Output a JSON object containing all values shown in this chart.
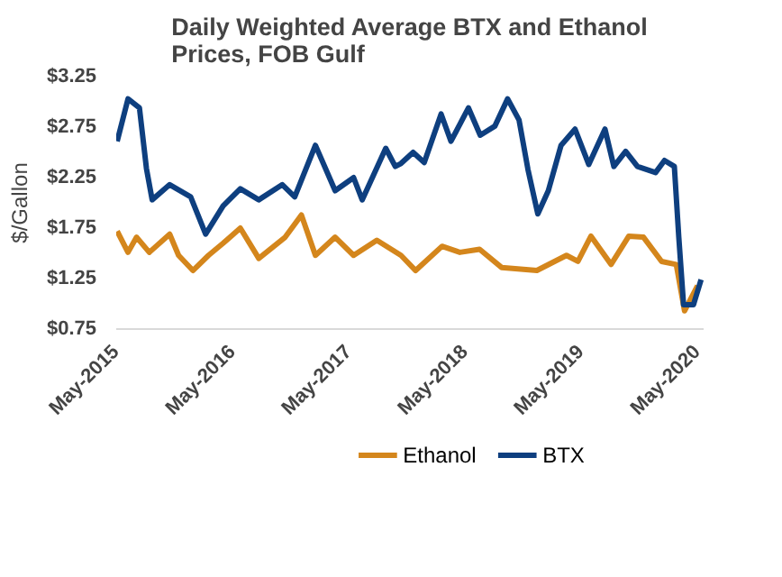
{
  "chart_data": {
    "type": "line",
    "title": "Daily Weighted Average BTX and Ethanol Prices, FOB Gulf",
    "ylabel": "$/Gallon",
    "xlim": [
      "2015-05-01",
      "2020-05-20"
    ],
    "xticks": [
      {
        "value": "2015-05-01",
        "label": "May-2015"
      },
      {
        "value": "2016-05-01",
        "label": "May-2016"
      },
      {
        "value": "2017-05-01",
        "label": "May-2017"
      },
      {
        "value": "2018-05-01",
        "label": "May-2018"
      },
      {
        "value": "2019-05-01",
        "label": "May-2019"
      },
      {
        "value": "2020-05-01",
        "label": "May-2020"
      }
    ],
    "ylim": [
      0.75,
      3.25
    ],
    "yticks": [
      {
        "value": 0.75,
        "label": "$0.75"
      },
      {
        "value": 1.25,
        "label": "$1.25"
      },
      {
        "value": 1.75,
        "label": "$1.75"
      },
      {
        "value": 2.25,
        "label": "$2.25"
      },
      {
        "value": 2.75,
        "label": "$2.75"
      },
      {
        "value": 3.25,
        "label": "$3.25"
      }
    ],
    "grid": false,
    "legend": "bottom",
    "line_style": "solid",
    "series": [
      {
        "name": "Ethanol",
        "color": "#d4861c",
        "x": [
          "2015-05-04",
          "2015-06-07",
          "2015-07-04",
          "2015-08-13",
          "2015-10-16",
          "2015-11-13",
          "2015-12-28",
          "2016-02-15",
          "2016-04-01",
          "2016-05-25",
          "2016-07-22",
          "2016-10-13",
          "2016-12-03",
          "2017-01-16",
          "2017-03-19",
          "2017-05-16",
          "2017-07-28",
          "2017-10-12",
          "2017-11-27",
          "2018-02-18",
          "2018-04-15",
          "2018-06-16",
          "2018-08-24",
          "2018-12-13",
          "2019-03-16",
          "2019-04-21",
          "2019-06-01",
          "2019-08-03",
          "2019-09-28",
          "2019-11-13",
          "2020-01-09",
          "2020-02-24",
          "2020-03-21",
          "2020-05-01"
        ],
        "values": [
          1.72,
          1.51,
          1.66,
          1.51,
          1.69,
          1.48,
          1.33,
          1.48,
          1.6,
          1.75,
          1.45,
          1.66,
          1.88,
          1.48,
          1.66,
          1.48,
          1.63,
          1.48,
          1.33,
          1.57,
          1.51,
          1.54,
          1.36,
          1.33,
          1.48,
          1.42,
          1.67,
          1.39,
          1.67,
          1.66,
          1.42,
          1.39,
          0.93,
          1.18
        ]
      },
      {
        "name": "BTX",
        "color": "#0e3f7f",
        "x": [
          "2015-05-04",
          "2015-06-07",
          "2015-07-13",
          "2015-08-04",
          "2015-08-22",
          "2015-10-16",
          "2015-12-21",
          "2016-02-06",
          "2016-04-01",
          "2016-05-25",
          "2016-07-22",
          "2016-10-04",
          "2016-11-12",
          "2017-01-16",
          "2017-03-19",
          "2017-05-16",
          "2017-06-12",
          "2017-08-25",
          "2017-09-24",
          "2017-10-12",
          "2017-11-19",
          "2017-12-24",
          "2018-02-15",
          "2018-03-18",
          "2018-05-12",
          "2018-06-18",
          "2018-08-03",
          "2018-09-12",
          "2018-10-18",
          "2018-11-15",
          "2018-12-16",
          "2019-01-18",
          "2019-02-27",
          "2019-04-12",
          "2019-05-25",
          "2019-07-15",
          "2019-08-12",
          "2019-09-18",
          "2019-10-25",
          "2019-12-21",
          "2020-01-18",
          "2020-02-18",
          "2020-03-03",
          "2020-03-18",
          "2020-04-18",
          "2020-05-12"
        ],
        "values": [
          2.61,
          3.03,
          2.94,
          2.34,
          2.03,
          2.18,
          2.06,
          1.69,
          1.97,
          2.14,
          2.03,
          2.18,
          2.06,
          2.57,
          2.12,
          2.25,
          2.03,
          2.54,
          2.36,
          2.39,
          2.5,
          2.4,
          2.88,
          2.61,
          2.94,
          2.67,
          2.76,
          3.03,
          2.82,
          2.33,
          1.89,
          2.12,
          2.57,
          2.73,
          2.38,
          2.73,
          2.36,
          2.51,
          2.36,
          2.3,
          2.42,
          2.36,
          1.66,
          0.99,
          0.99,
          1.24
        ]
      }
    ]
  }
}
